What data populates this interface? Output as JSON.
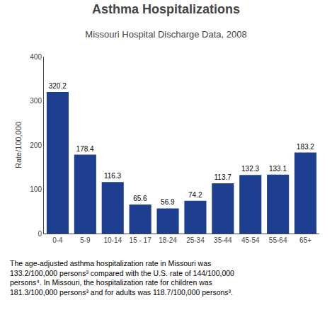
{
  "chart_data": {
    "type": "bar",
    "title": "Asthma Hospitalizations",
    "subtitle": "Missouri Hospital Discharge Data, 2008",
    "categories": [
      "0-4",
      "5-9",
      "10-14",
      "15 - 17",
      "18-24",
      "25-34",
      "35-44",
      "45-54",
      "55-64",
      "65+"
    ],
    "values": [
      320.2,
      178.4,
      116.3,
      65.6,
      56.9,
      74.2,
      113.7,
      132.3,
      133.1,
      183.2
    ],
    "color": "#1e3f8f",
    "ylabel": "Rate/100,000",
    "ylim": [
      0,
      400
    ],
    "yticks": [
      0,
      100,
      200,
      300,
      400
    ],
    "data_labels": true,
    "grid": false,
    "annotations": [
      "The age-adjusted asthma hospitalization rate in Missouri was",
      "133.2/100,000 persons³ compared with the U.S. rate of 144/100,000",
      "persons⁴. In Missouri, the hospitalization rate for children was",
      "181.3/100,000 persons³ and for adults was 118.7/100,000 persons³."
    ]
  }
}
